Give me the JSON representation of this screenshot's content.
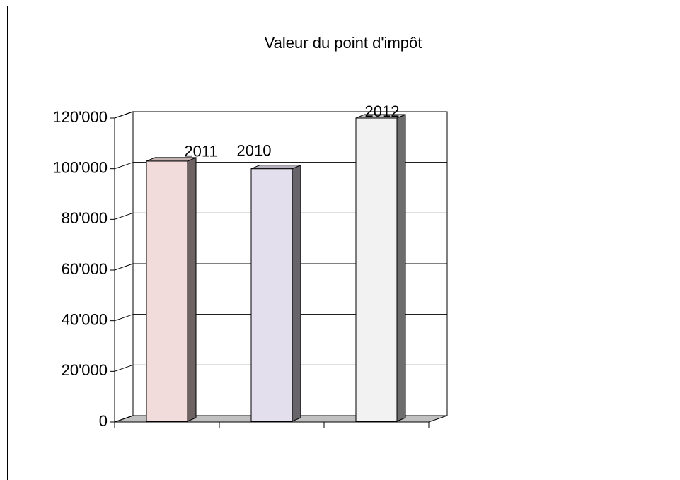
{
  "chart_data": {
    "type": "bar3d",
    "title": "Valeur du point d'impôt",
    "series": [
      {
        "name": "2011",
        "color": "#f2dcdb",
        "values": [
          103000
        ]
      },
      {
        "name": "2010",
        "color": "#e4dfec",
        "values": [
          100000
        ]
      },
      {
        "name": "2012",
        "color": "#f2f2f2",
        "values": [
          120000
        ]
      }
    ],
    "ylim": [
      0,
      120000
    ],
    "yticks": [
      0,
      {
        "value": 20000,
        "label": "20'000"
      },
      {
        "value": 40000,
        "label": "40'000"
      },
      {
        "value": 60000,
        "label": "60'000"
      },
      {
        "value": 80000,
        "label": "80'000"
      },
      {
        "value": 100000,
        "label": "100'000"
      },
      {
        "value": 120000,
        "label": "120'000"
      }
    ],
    "grid": true
  }
}
